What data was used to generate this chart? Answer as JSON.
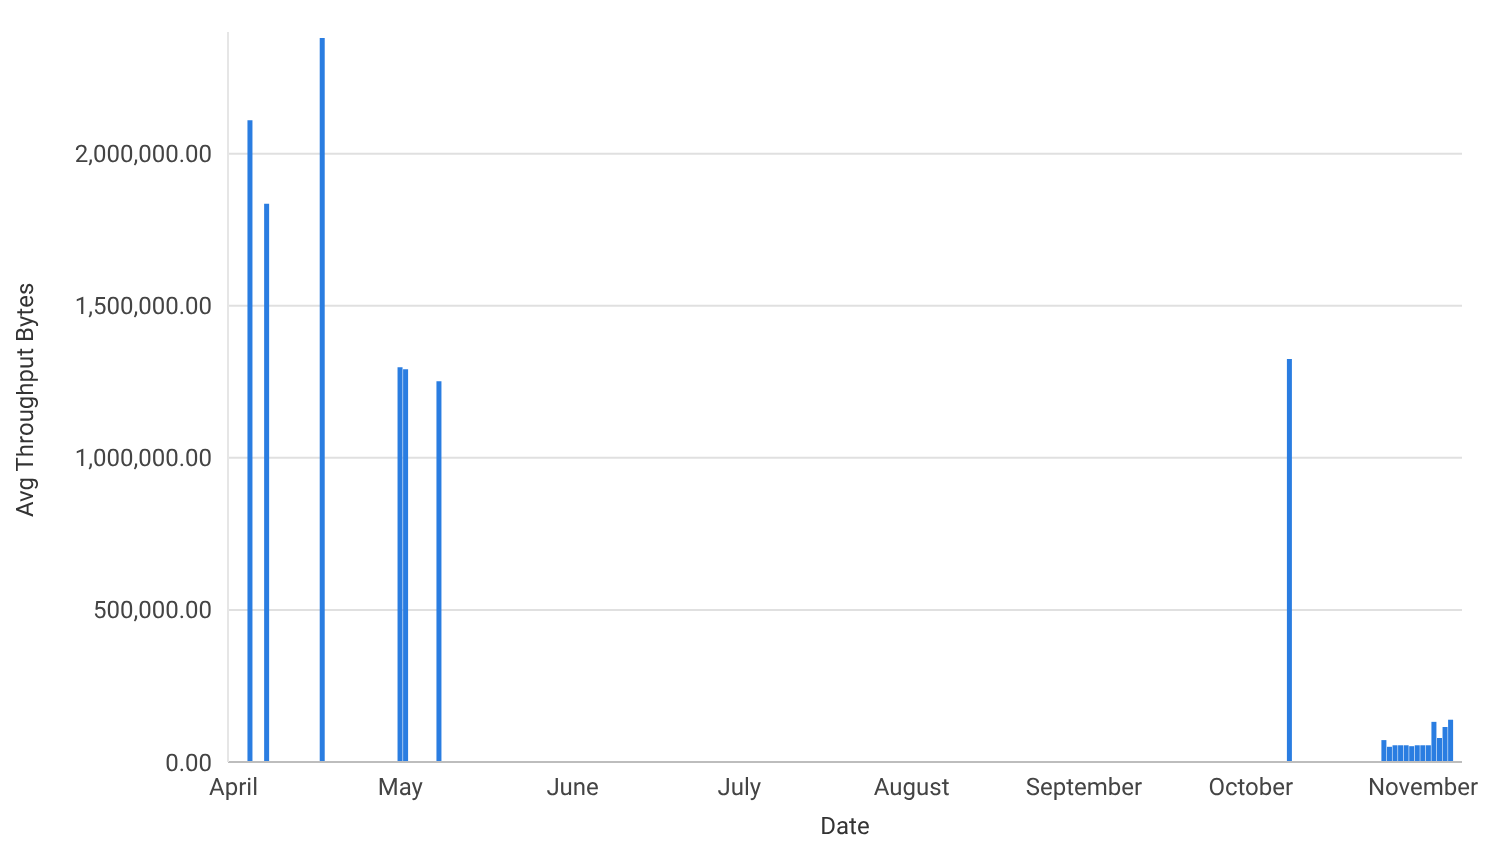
{
  "chart_data": {
    "type": "bar",
    "xlabel": "Date",
    "ylabel": "Avg Throughput Bytes",
    "x": [
      "--04-04",
      "--04-07",
      "--04-17",
      "--05-01",
      "--05-02",
      "--05-08",
      "--10-08",
      "--10-25",
      "--10-26",
      "--10-27",
      "--10-28",
      "--10-29",
      "--10-30",
      "--10-31",
      "--11-01",
      "--11-02",
      "--11-03",
      "--11-04",
      "--11-05",
      "--11-06"
    ],
    "series": [
      {
        "color": "#2a7de1",
        "values": [
          2110000,
          1835000,
          2380000,
          1298000,
          1291000,
          1252000,
          1325000,
          72000,
          50000,
          55000,
          55000,
          55000,
          52000,
          55000,
          55000,
          55000,
          132000,
          79000,
          115000,
          139000
        ]
      }
    ],
    "xlim": [
      "--03-31",
      "--11-08"
    ],
    "xticks": [
      {
        "value": "--04-01",
        "label": "April"
      },
      {
        "value": "--05-01",
        "label": "May"
      },
      {
        "value": "--06-01",
        "label": "June"
      },
      {
        "value": "--07-01",
        "label": "July"
      },
      {
        "value": "--08-01",
        "label": "August"
      },
      {
        "value": "--09-01",
        "label": "September"
      },
      {
        "value": "--10-01",
        "label": "October"
      },
      {
        "value": "--11-01",
        "label": "November"
      }
    ],
    "ylim": [
      0,
      2400000
    ],
    "yticks": [
      {
        "value": 0,
        "label": "0.00"
      },
      {
        "value": 500000,
        "label": "500,000.00"
      },
      {
        "value": 1000000,
        "label": "1,000,000.00"
      },
      {
        "value": 1500000,
        "label": "1,500,000.00"
      },
      {
        "value": 2000000,
        "label": "2,000,000.00"
      }
    ],
    "grid": "y",
    "legend": false
  }
}
